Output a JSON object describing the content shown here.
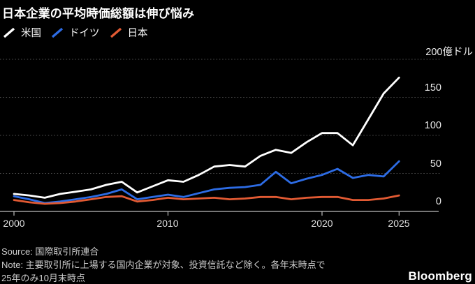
{
  "title": "日本企業の平均時価総額は伸び悩み",
  "legend": [
    {
      "id": "us",
      "label": "米国",
      "color": "#ffffff"
    },
    {
      "id": "germany",
      "label": "ドイツ",
      "color": "#2d6ce5"
    },
    {
      "id": "japan",
      "label": "日本",
      "color": "#e25a33"
    }
  ],
  "footer": {
    "source": "Source: 国際取引所連合",
    "note1": "Note: 主要取引所に上場する国内企業が対象、投資信託など除く。各年末時点で",
    "note2": "25年のみ10月末時点",
    "brand": "Bloomberg"
  },
  "chart_data": {
    "type": "line",
    "title": "日本企業の平均時価総額は伸び悩み",
    "unit": "億ドル",
    "x": [
      2000,
      2001,
      2002,
      2003,
      2004,
      2005,
      2006,
      2007,
      2008,
      2009,
      2010,
      2011,
      2012,
      2013,
      2014,
      2015,
      2016,
      2017,
      2018,
      2019,
      2020,
      2021,
      2022,
      2023,
      2024,
      2025
    ],
    "series": [
      {
        "id": "us",
        "name": "米国",
        "color": "#ffffff",
        "values": [
          23,
          21,
          18,
          23,
          26,
          29,
          35,
          39,
          25,
          33,
          41,
          39,
          48,
          59,
          61,
          59,
          73,
          81,
          77,
          91,
          103,
          103,
          87,
          121,
          155,
          176
        ]
      },
      {
        "id": "germany",
        "name": "ドイツ",
        "color": "#2d6ce5",
        "values": [
          20,
          16,
          11,
          13,
          16,
          19,
          23,
          29,
          16,
          19,
          22,
          19,
          24,
          29,
          31,
          32,
          35,
          52,
          37,
          43,
          48,
          56,
          44,
          48,
          46,
          66
        ]
      },
      {
        "id": "japan",
        "name": "日本",
        "color": "#e25a33",
        "values": [
          15,
          12,
          10,
          11,
          13,
          16,
          19,
          20,
          13,
          15,
          18,
          16,
          17,
          18,
          16,
          17,
          19,
          19,
          16,
          18,
          19,
          19,
          15,
          15,
          17,
          21
        ]
      }
    ],
    "ylim": [
      0,
      200
    ],
    "y_ticks": [
      0,
      50,
      100,
      150,
      200
    ],
    "y_tick_labels": [
      "200億ドル",
      "150",
      "100",
      "50",
      "0"
    ],
    "x_tick_years": [
      2000,
      2010,
      2020,
      2025
    ],
    "x_tick_labels": [
      "2000",
      "2010",
      "2020",
      "2025"
    ],
    "grid": "horizontal-dotted",
    "legend_position": "top-left",
    "background": "#000000"
  }
}
